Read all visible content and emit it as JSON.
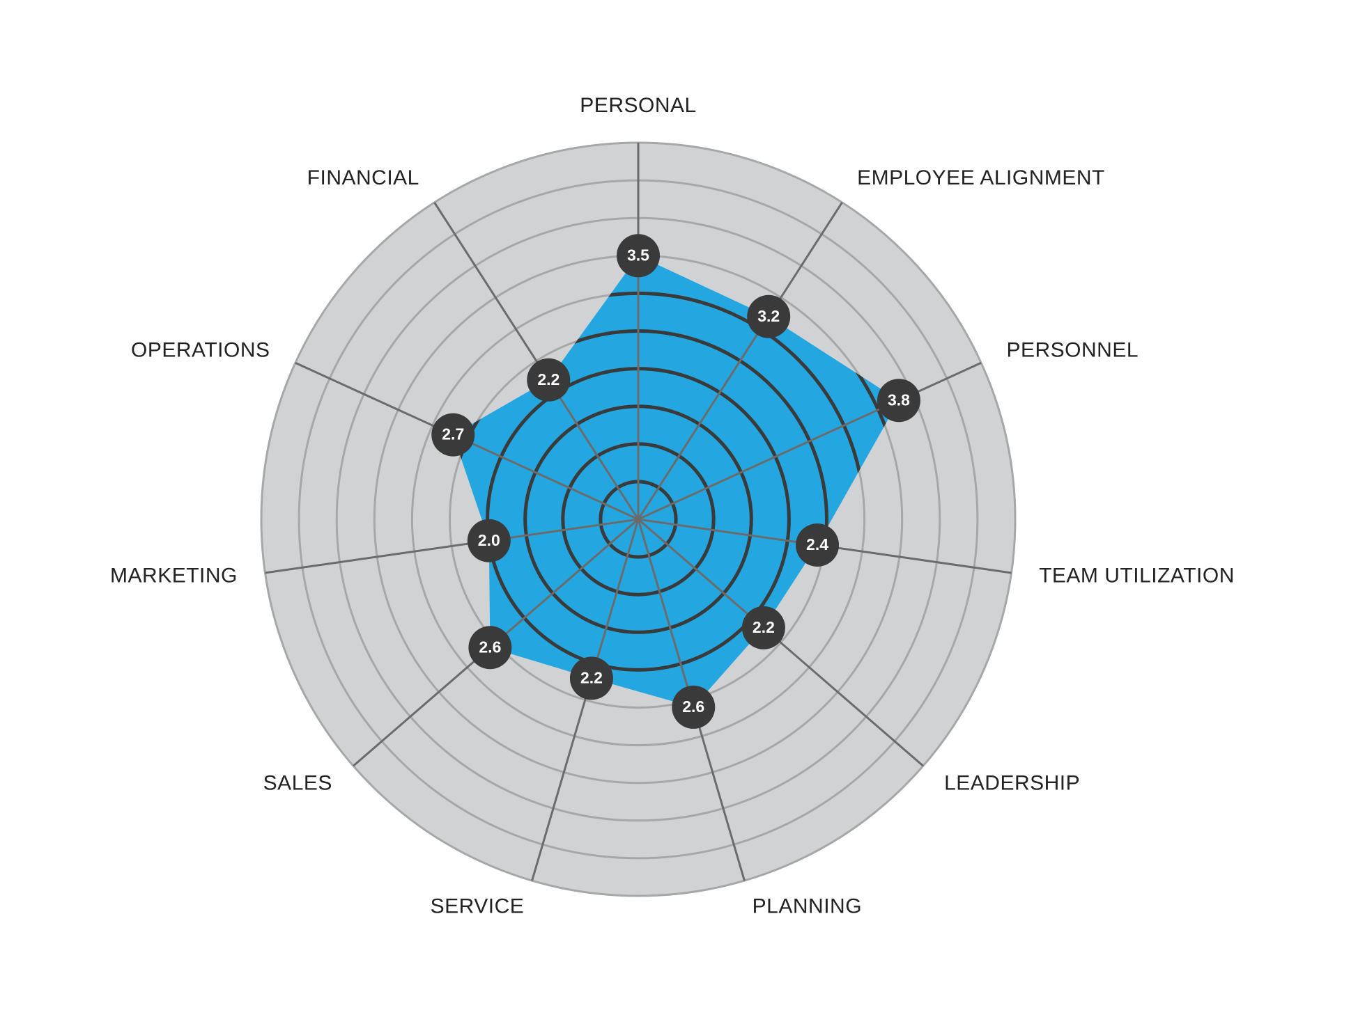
{
  "chart_data": {
    "type": "radar",
    "categories": [
      "PERSONAL",
      "EMPLOYEE ALIGNMENT",
      "PERSONNEL",
      "TEAM UTILIZATION",
      "LEADERSHIP",
      "PLANNING",
      "SERVICE",
      "SALES",
      "MARKETING",
      "OPERATIONS",
      "FINANCIAL"
    ],
    "values": [
      3.5,
      3.2,
      3.8,
      2.4,
      2.2,
      2.6,
      2.2,
      2.6,
      2.0,
      2.7,
      2.2
    ],
    "value_labels": [
      "3.5",
      "3.2",
      "3.8",
      "2.4",
      "2.2",
      "2.6",
      "2.2",
      "2.6",
      "2.0",
      "2.7",
      "2.2"
    ],
    "color": "#24a7e0",
    "ylim": [
      0,
      5
    ],
    "yticks": [
      0.5,
      1,
      1.5,
      2,
      2.5,
      3,
      3.5,
      4,
      4.5,
      5
    ],
    "grid": true
  }
}
